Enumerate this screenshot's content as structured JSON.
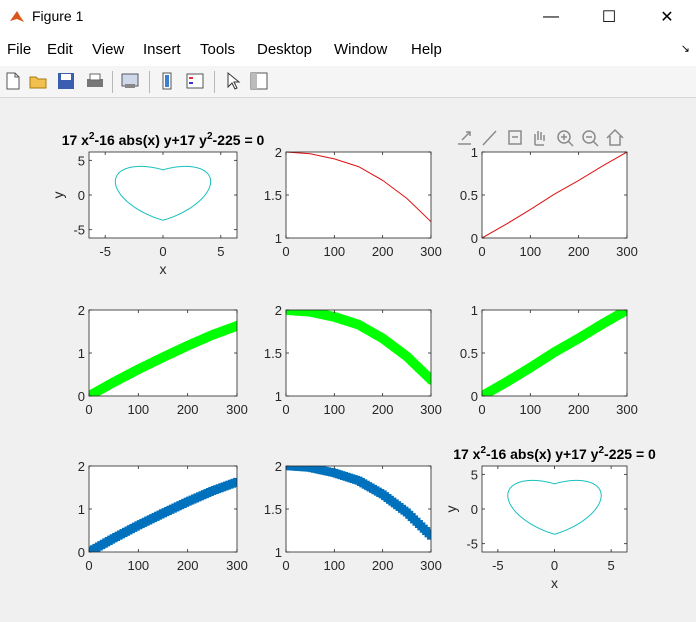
{
  "window": {
    "title": "Figure 1",
    "minimize": "—",
    "maximize": "☐",
    "close": "✕"
  },
  "menu": [
    "File",
    "Edit",
    "View",
    "Insert",
    "Tools",
    "Desktop",
    "Window",
    "Help"
  ],
  "menu_arrow": "↘",
  "toolbar": [
    "new-figure-icon",
    "open-file-icon",
    "save-icon",
    "print-icon",
    "link-plot-icon",
    "colorbar-icon",
    "legend-icon",
    "pointer-icon",
    "property-inspector-icon"
  ],
  "axes_toolbar": [
    "export-icon",
    "brush-icon",
    "data-tips-icon",
    "pan-icon",
    "zoom-in-icon",
    "zoom-out-icon",
    "home-icon"
  ],
  "colors": {
    "cyan": "#17bfbf",
    "red": "#e01010",
    "green": "#00ff00",
    "blue": "#0072bd"
  },
  "implicit_title": {
    "base": "17 x",
    "sup1": "2",
    "mid": "-16 abs(x) y+17 y",
    "sup2": "2",
    "end": "-225 = 0"
  },
  "chart_data": [
    {
      "type": "line",
      "equation": "17 x^2 - 16 abs(x) y + 17 y^2 - 225 = 0",
      "xlabel": "x",
      "ylabel": "y",
      "xlim": [
        -6.4,
        6.4
      ],
      "ylim": [
        -6.2,
        6.2
      ],
      "xticks": [
        -5,
        0,
        5
      ],
      "yticks": [
        -5,
        0,
        5
      ],
      "color": "cyan"
    },
    {
      "type": "line",
      "x": [
        0,
        50,
        100,
        150,
        200,
        250,
        300
      ],
      "y": [
        2.0,
        1.98,
        1.92,
        1.83,
        1.67,
        1.46,
        1.19
      ],
      "xlim": [
        0,
        300
      ],
      "ylim": [
        1,
        2
      ],
      "xticks": [
        0,
        100,
        200,
        300
      ],
      "yticks": [
        1,
        1.5,
        2
      ],
      "color": "red"
    },
    {
      "type": "line",
      "x": [
        0,
        50,
        100,
        150,
        200,
        250,
        300
      ],
      "y": [
        0.0,
        0.16,
        0.33,
        0.51,
        0.67,
        0.84,
        1.0
      ],
      "xlim": [
        0,
        300
      ],
      "ylim": [
        0,
        1
      ],
      "xticks": [
        0,
        100,
        200,
        300
      ],
      "yticks": [
        0,
        0.5,
        1
      ],
      "color": "red"
    },
    {
      "type": "scatter",
      "x": [
        0,
        50,
        100,
        150,
        200,
        250,
        300
      ],
      "y": [
        0.0,
        0.32,
        0.62,
        0.9,
        1.17,
        1.42,
        1.63
      ],
      "xlim": [
        0,
        300
      ],
      "ylim": [
        0,
        2
      ],
      "xticks": [
        0,
        100,
        200,
        300
      ],
      "yticks": [
        0,
        1,
        2
      ],
      "color": "green"
    },
    {
      "type": "scatter",
      "x": [
        0,
        50,
        100,
        150,
        200,
        250,
        300
      ],
      "y": [
        2.0,
        1.98,
        1.92,
        1.83,
        1.67,
        1.46,
        1.19
      ],
      "xlim": [
        0,
        300
      ],
      "ylim": [
        1,
        2
      ],
      "xticks": [
        0,
        100,
        200,
        300
      ],
      "yticks": [
        1,
        1.5,
        2
      ],
      "color": "green"
    },
    {
      "type": "scatter",
      "x": [
        0,
        50,
        100,
        150,
        200,
        250,
        300
      ],
      "y": [
        0.0,
        0.16,
        0.33,
        0.51,
        0.67,
        0.84,
        1.0
      ],
      "xlim": [
        0,
        300
      ],
      "ylim": [
        0,
        1
      ],
      "xticks": [
        0,
        100,
        200,
        300
      ],
      "yticks": [
        0,
        0.5,
        1
      ],
      "color": "green"
    },
    {
      "type": "scatter",
      "x": [
        0,
        50,
        100,
        150,
        200,
        250,
        300
      ],
      "y": [
        0.0,
        0.32,
        0.62,
        0.9,
        1.17,
        1.42,
        1.63
      ],
      "xlim": [
        0,
        300
      ],
      "ylim": [
        0,
        2
      ],
      "xticks": [
        0,
        100,
        200,
        300
      ],
      "yticks": [
        0,
        1,
        2
      ],
      "color": "blue"
    },
    {
      "type": "scatter",
      "x": [
        0,
        50,
        100,
        150,
        200,
        250,
        300
      ],
      "y": [
        2.0,
        1.98,
        1.92,
        1.83,
        1.67,
        1.46,
        1.19
      ],
      "xlim": [
        0,
        300
      ],
      "ylim": [
        1,
        2
      ],
      "xticks": [
        0,
        100,
        200,
        300
      ],
      "yticks": [
        1,
        1.5,
        2
      ],
      "color": "blue"
    },
    {
      "type": "line",
      "equation": "17 x^2 - 16 abs(x) y + 17 y^2 - 225 = 0",
      "xlabel": "x",
      "ylabel": "y",
      "xlim": [
        -6.4,
        6.4
      ],
      "ylim": [
        -6.2,
        6.2
      ],
      "xticks": [
        -5,
        0,
        5
      ],
      "yticks": [
        -5,
        0,
        5
      ],
      "color": "cyan"
    }
  ]
}
